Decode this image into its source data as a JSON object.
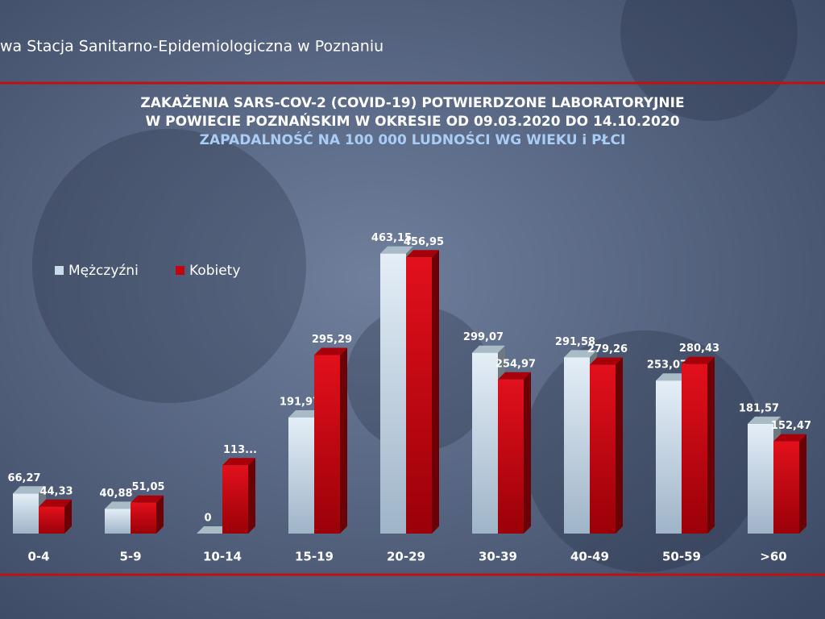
{
  "header": "wa Stacja Sanitarno-Epidemiologiczna w Poznaniu",
  "chart_data": {
    "type": "bar",
    "title": [
      "ZAKAŻENIA SARS-COV-2 (COVID-19) POTWIERDZONE LABORATORYJNIE",
      "W POWIECIE POZNAŃSKIM W OKRESIE OD 09.03.2020 DO 14.10.2020"
    ],
    "subtitle": "ZAPADALNOŚĆ NA 100 000 LUDNOŚCI WG WIEKU i PŁCI",
    "categories": [
      "0-4",
      "5-9",
      "10-14",
      "15-19",
      "20-29",
      "30-39",
      "40-49",
      "50-59",
      ">60"
    ],
    "legend": "top-left",
    "series": [
      {
        "name": "Mężczyźni",
        "color": "#c8dceb",
        "values": [
          66.27,
          40.88,
          0,
          191.97,
          463.15,
          299.07,
          291.58,
          253.07,
          181.57
        ],
        "value_labels": [
          "66,27",
          "40,88",
          "0",
          "191,97",
          "463,15",
          "299,07",
          "291,58",
          "253,07",
          "181,57"
        ]
      },
      {
        "name": "Kobiety",
        "color": "#c4000c",
        "values": [
          44.33,
          51.05,
          113,
          295.29,
          456.95,
          254.97,
          279.26,
          280.43,
          152.47
        ],
        "value_labels": [
          "44,33",
          "51,05",
          "113...",
          "295,29",
          "456,95",
          "254,97",
          "279,26",
          "280,43",
          "152,47"
        ]
      }
    ]
  }
}
